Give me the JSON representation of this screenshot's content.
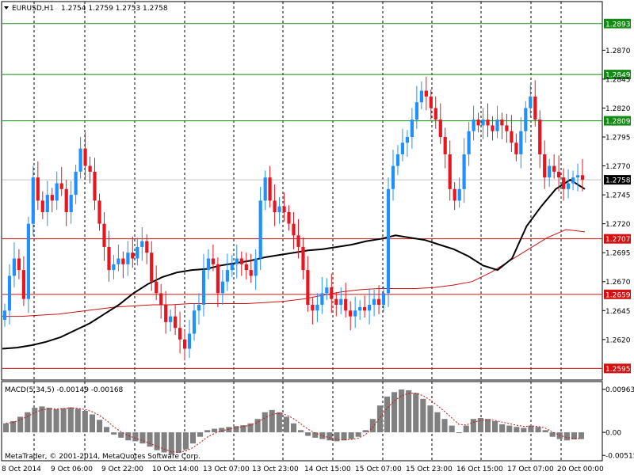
{
  "header": {
    "symbol": "EURUSD,H1",
    "ohlc": "1.2754 1.2759 1.2753 1.2758"
  },
  "macd": {
    "label": "MACD(5,34,5) -0.00149 -0.00168",
    "ticks": [
      "0.00963",
      "0.00",
      "-0.00515"
    ],
    "tick_values": [
      0.00963,
      0.0,
      -0.00515
    ]
  },
  "copyright": "MetaTrader, © 2001-2014, MetaQuotes Software Corp.",
  "colors": {
    "bull": "#1e90ff",
    "bear": "#e8141e",
    "ma_fast": "#000000",
    "ma_slow": "#cc1111",
    "level_green": "#138a13",
    "level_red": "#d41010",
    "grid": "#000000"
  },
  "chart_data": {
    "type": "line",
    "symbol": "EURUSD",
    "timeframe": "H1",
    "ylim": [
      1.2585,
      1.2912
    ],
    "price_ticks": [
      "1.2870",
      "1.2845",
      "1.2820",
      "1.2795",
      "1.2770",
      "1.2745",
      "1.2720",
      "1.2695",
      "1.2670",
      "1.2645",
      "1.2620"
    ],
    "current_price": "1.2758",
    "levels": [
      {
        "value": "1.2893",
        "color": "green"
      },
      {
        "value": "1.2849",
        "color": "green"
      },
      {
        "value": "1.2809",
        "color": "green"
      },
      {
        "value": "1.2707",
        "color": "red"
      },
      {
        "value": "1.2659",
        "color": "red"
      },
      {
        "value": "1.2595",
        "color": "red"
      }
    ],
    "x_labels": [
      "8 Oct 2014",
      "9 Oct 06:00",
      "9 Oct 22:00",
      "10 Oct 14:00",
      "13 Oct 07:00",
      "13 Oct 23:00",
      "14 Oct 15:00",
      "15 Oct 07:00",
      "15 Oct 23:00",
      "16 Oct 15:00",
      "17 Oct 07:00",
      "20 Oct 00:00"
    ],
    "closes": [
      1.2645,
      1.2675,
      1.269,
      1.268,
      1.2655,
      1.272,
      1.276,
      1.274,
      1.273,
      1.2745,
      1.274,
      1.2755,
      1.275,
      1.273,
      1.2745,
      1.2765,
      1.2785,
      1.277,
      1.2765,
      1.274,
      1.272,
      1.27,
      1.268,
      1.2685,
      1.269,
      1.2685,
      1.2695,
      1.269,
      1.27,
      1.2705,
      1.2695,
      1.267,
      1.266,
      1.265,
      1.2635,
      1.264,
      1.263,
      1.262,
      1.2612,
      1.2625,
      1.2645,
      1.265,
      1.268,
      1.269,
      1.2685,
      1.266,
      1.267,
      1.268,
      1.2685,
      1.269,
      1.2685,
      1.268,
      1.2675,
      1.269,
      1.274,
      1.276,
      1.274,
      1.273,
      1.2735,
      1.273,
      1.272,
      1.271,
      1.27,
      1.268,
      1.265,
      1.2645,
      1.265,
      1.266,
      1.2665,
      1.2655,
      1.265,
      1.2655,
      1.2645,
      1.264,
      1.2645,
      1.2648,
      1.2645,
      1.265,
      1.2655,
      1.265,
      1.266,
      1.275,
      1.277,
      1.278,
      1.279,
      1.2795,
      1.281,
      1.2825,
      1.2835,
      1.283,
      1.282,
      1.281,
      1.2795,
      1.278,
      1.275,
      1.274,
      1.275,
      1.278,
      1.28,
      1.281,
      1.2805,
      1.281,
      1.2805,
      1.28,
      1.281,
      1.2805,
      1.28,
      1.279,
      1.278,
      1.28,
      1.282,
      1.283,
      1.281,
      1.278,
      1.276,
      1.277,
      1.2765,
      1.276,
      1.275,
      1.2755,
      1.276,
      1.2762,
      1.2758
    ],
    "ma_fast": [
      1.2612,
      1.2613,
      1.2615,
      1.2618,
      1.2622,
      1.2628,
      1.2634,
      1.2642,
      1.265,
      1.266,
      1.2668,
      1.2674,
      1.2678,
      1.268,
      1.2681,
      1.2684,
      1.2686,
      1.2688,
      1.2691,
      1.2693,
      1.2695,
      1.2697,
      1.2698,
      1.27,
      1.2702,
      1.2705,
      1.2707,
      1.271,
      1.2708,
      1.2706,
      1.2702,
      1.2698,
      1.2692,
      1.2684,
      1.268,
      1.269,
      1.2718,
      1.2735,
      1.275,
      1.2758,
      1.275
    ],
    "ma_slow": [
      1.264,
      1.264,
      1.2641,
      1.2642,
      1.2644,
      1.2646,
      1.2648,
      1.2649,
      1.265,
      1.265,
      1.2651,
      1.2651,
      1.2651,
      1.2651,
      1.2652,
      1.2653,
      1.2655,
      1.2658,
      1.2661,
      1.2663,
      1.2664,
      1.2664,
      1.2664,
      1.2665,
      1.2667,
      1.267,
      1.2678,
      1.2688,
      1.2698,
      1.2708,
      1.2715,
      1.2713
    ],
    "macd_hist": [
      0.002,
      0.0025,
      0.0035,
      0.0045,
      0.0055,
      0.0058,
      0.0055,
      0.0052,
      0.0054,
      0.0056,
      0.0053,
      0.0048,
      0.004,
      0.0028,
      0.0012,
      -0.0005,
      -0.0012,
      -0.0018,
      -0.002,
      -0.0025,
      -0.0032,
      -0.004,
      -0.0045,
      -0.005,
      -0.0046,
      -0.0038,
      -0.0025,
      -0.001,
      0.0005,
      0.0008,
      0.001,
      0.0012,
      0.0014,
      0.0016,
      0.002,
      0.003,
      0.0045,
      0.005,
      0.0045,
      0.0035,
      0.002,
      0.0005,
      -0.0008,
      -0.0012,
      -0.0015,
      -0.0018,
      -0.002,
      -0.0018,
      -0.0015,
      -0.001,
      0.0005,
      0.003,
      0.006,
      0.008,
      0.009,
      0.0096,
      0.0094,
      0.0088,
      0.0075,
      0.006,
      0.0045,
      0.003,
      0.0015,
      0.0,
      0.0015,
      0.003,
      0.0032,
      0.003,
      0.0025,
      0.0018,
      0.0015,
      0.0012,
      0.001,
      0.0015,
      0.0012,
      0.0005,
      -0.001,
      -0.0015,
      -0.0018,
      -0.0016,
      -0.0015
    ]
  }
}
